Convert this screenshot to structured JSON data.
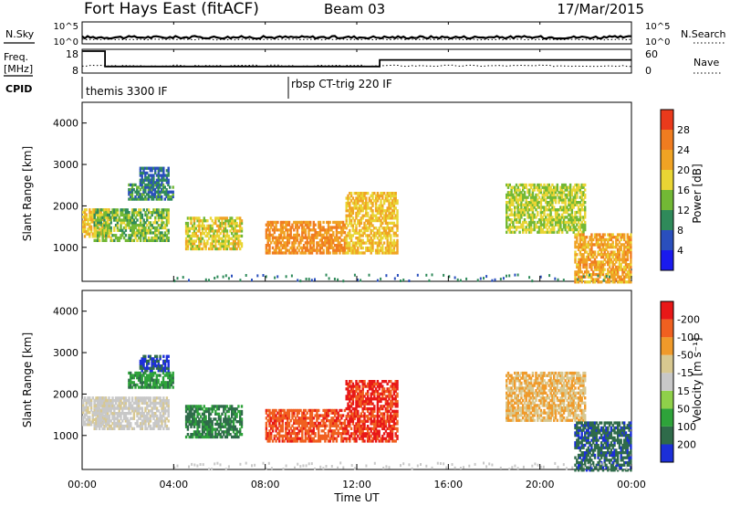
{
  "header": {
    "station": "Fort Hays East (fitACF)",
    "beam": "Beam 03",
    "date": "17/Mar/2015"
  },
  "noise_panel": {
    "left_label": "N.Sky",
    "right_label": "N.Search",
    "left_ticks": [
      "10^5",
      "10^0"
    ],
    "right_ticks": [
      "10^5",
      "10^0"
    ]
  },
  "freq_panel": {
    "left_label_1": "Freq.",
    "left_label_2": "[MHz]",
    "right_label": "Nave",
    "left_ticks": [
      "18",
      "8"
    ],
    "right_ticks": [
      "60",
      "0"
    ]
  },
  "cpid": {
    "label": "CPID",
    "modes": [
      {
        "name": "themis 3300 IF",
        "start_hour": 0
      },
      {
        "name": "rbsp CT-trig 220 IF",
        "start_hour": 8.9
      }
    ]
  },
  "x_axis": {
    "label": "Time UT",
    "ticks": [
      "00:00",
      "04:00",
      "08:00",
      "12:00",
      "16:00",
      "20:00",
      "00:00"
    ]
  },
  "y_axis": {
    "label": "Slant Range [km]",
    "ticks": [
      "1000",
      "2000",
      "3000",
      "4000"
    ]
  },
  "power_bar": {
    "label": "Power [dB]",
    "ticks": [
      "4",
      "8",
      "12",
      "16",
      "20",
      "24",
      "28"
    ],
    "colors": [
      "#1a1aee",
      "#2a4fbd",
      "#2f8a5a",
      "#72b835",
      "#e9d534",
      "#f0a324",
      "#f07c20",
      "#ea3a1c"
    ]
  },
  "velocity_bar": {
    "label": "Velocity [m s⁻¹]",
    "ticks": [
      "200",
      "100",
      "50",
      "15",
      "-15",
      "-50",
      "-100",
      "-200"
    ],
    "colors": [
      "#1c2fd9",
      "#2f6b4a",
      "#2ea33a",
      "#8fd04a",
      "#c8c8c8",
      "#d8c890",
      "#f09a2a",
      "#f06020",
      "#e81818"
    ]
  },
  "chart_data": {
    "type": "heatmap",
    "x_range_hours": [
      0,
      24
    ],
    "y_range_km": [
      180,
      4500
    ],
    "noise": {
      "sky_level": "~10^1 to 10^2 (log scale 10^0–10^5)",
      "search_level": "~10^1 (dotted)"
    },
    "frequency_MHz": [
      {
        "start": 0,
        "end": 1.0,
        "value": 18
      },
      {
        "start": 1.0,
        "end": 13.0,
        "value": 11
      },
      {
        "start": 13.0,
        "end": 24,
        "value": 14
      }
    ],
    "nave": {
      "approx": 20,
      "range": [
        0,
        60
      ]
    },
    "power_dB_scale": [
      0,
      32
    ],
    "velocity_scale": [
      -250,
      250
    ],
    "echo_regions": [
      {
        "start_hour": 0.0,
        "end_hour": 1.2,
        "range_km": [
          1300,
          2000
        ],
        "power_dB": 20,
        "velocity": -15
      },
      {
        "start_hour": 0.5,
        "end_hour": 3.8,
        "range_km": [
          1200,
          2000
        ],
        "power_dB": 14,
        "velocity": -10
      },
      {
        "start_hour": 2.0,
        "end_hour": 4.0,
        "range_km": [
          2200,
          2600
        ],
        "power_dB": 10,
        "velocity": 120
      },
      {
        "start_hour": 2.5,
        "end_hour": 3.8,
        "range_km": [
          2600,
          3000
        ],
        "power_dB": 8,
        "velocity": 200
      },
      {
        "start_hour": 4.5,
        "end_hour": 7.0,
        "range_km": [
          1000,
          1800
        ],
        "power_dB": 18,
        "velocity": 150
      },
      {
        "start_hour": 8.0,
        "end_hour": 11.5,
        "range_km": [
          900,
          1700
        ],
        "power_dB": 24,
        "velocity": -180
      },
      {
        "start_hour": 11.5,
        "end_hour": 13.8,
        "range_km": [
          900,
          2400
        ],
        "power_dB": 20,
        "velocity": -200
      },
      {
        "start_hour": 18.5,
        "end_hour": 22.0,
        "range_km": [
          1400,
          2600
        ],
        "power_dB": 16,
        "velocity": -80
      },
      {
        "start_hour": 21.5,
        "end_hour": 24.0,
        "range_km": [
          200,
          1400
        ],
        "power_dB": 22,
        "velocity": 180
      }
    ]
  }
}
